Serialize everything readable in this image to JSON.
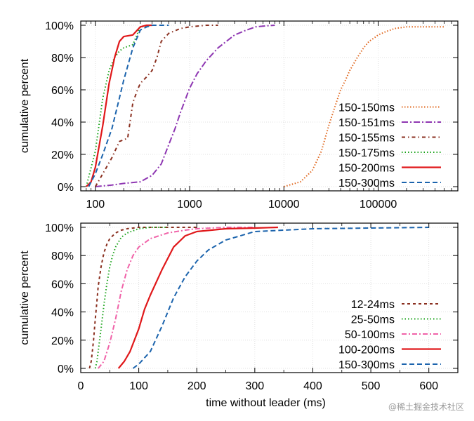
{
  "watermark": "@稀土掘金技术社区",
  "chart_data": [
    {
      "type": "line",
      "xscale": "log",
      "xlim": [
        70,
        700000
      ],
      "ylim": [
        0,
        100
      ],
      "xticks": [
        100,
        1000,
        10000,
        100000
      ],
      "xtick_labels": [
        "100",
        "1000",
        "10000",
        "100000"
      ],
      "yticks": [
        0,
        20,
        40,
        60,
        80,
        100
      ],
      "ytick_labels": [
        "0%",
        "20%",
        "40%",
        "60%",
        "80%",
        "100%"
      ],
      "xlabel": "",
      "ylabel": "cumulative percent",
      "grid": true,
      "legend": "right",
      "series": [
        {
          "name": "150-150ms",
          "color": "#e0671e",
          "dash": "1.5 2.5",
          "x": [
            10000,
            15000,
            20000,
            25000,
            30000,
            35000,
            40000,
            45000,
            50000,
            60000,
            70000,
            80000,
            90000,
            100000,
            120000,
            150000,
            200000,
            300000,
            500000
          ],
          "y": [
            0,
            3,
            10,
            22,
            38,
            50,
            60,
            66,
            72,
            80,
            86,
            90,
            92,
            94,
            96,
            98,
            99,
            99,
            99
          ]
        },
        {
          "name": "150-151ms",
          "color": "#8e36b2",
          "dash": "9 3 2 3",
          "x": [
            100,
            150,
            200,
            300,
            400,
            500,
            600,
            700,
            800,
            900,
            1000,
            1200,
            1500,
            2000,
            3000,
            4000,
            5000,
            6000,
            8000
          ],
          "y": [
            0,
            1,
            2,
            3,
            7,
            14,
            26,
            36,
            46,
            54,
            61,
            70,
            78,
            86,
            94,
            97,
            99,
            99.5,
            100
          ]
        },
        {
          "name": "150-155ms",
          "color": "#8a2f1f",
          "dash": "5 4 1.5 4",
          "x": [
            100,
            120,
            150,
            180,
            220,
            250,
            280,
            300,
            350,
            400,
            450,
            500,
            600,
            800,
            1000,
            1500,
            2000
          ],
          "y": [
            0,
            8,
            18,
            28,
            30,
            52,
            60,
            64,
            68,
            72,
            80,
            90,
            95,
            98,
            99,
            100,
            100
          ]
        },
        {
          "name": "150-175ms",
          "color": "#1aa31a",
          "dash": "1.5 3",
          "x": [
            80,
            100,
            120,
            140,
            160,
            180,
            200,
            250,
            300,
            400
          ],
          "y": [
            0,
            22,
            55,
            72,
            80,
            84,
            86,
            88,
            99,
            100
          ]
        },
        {
          "name": "150-200ms",
          "color": "#e0181a",
          "dash": "",
          "x": [
            80,
            90,
            100,
            120,
            140,
            160,
            180,
            200,
            250,
            300,
            350,
            400
          ],
          "y": [
            0,
            3,
            12,
            38,
            64,
            80,
            90,
            93,
            94,
            99,
            100,
            100
          ]
        },
        {
          "name": "150-300ms",
          "color": "#1c64ad",
          "dash": "7 4",
          "x": [
            85,
            100,
            120,
            150,
            180,
            200,
            250,
            300,
            350,
            400,
            600
          ],
          "y": [
            0,
            8,
            20,
            36,
            55,
            66,
            86,
            97,
            99,
            100,
            100
          ]
        }
      ]
    },
    {
      "type": "line",
      "xscale": "linear",
      "xlim": [
        0,
        650
      ],
      "ylim": [
        0,
        100
      ],
      "xticks": [
        0,
        100,
        200,
        300,
        400,
        500,
        600
      ],
      "xtick_labels": [
        "0",
        "100",
        "200",
        "300",
        "400",
        "500",
        "600"
      ],
      "yticks": [
        0,
        20,
        40,
        60,
        80,
        100
      ],
      "ytick_labels": [
        "0%",
        "20%",
        "40%",
        "60%",
        "80%",
        "100%"
      ],
      "xlabel": "time without leader (ms)",
      "ylabel": "cumulative percent",
      "grid": true,
      "legend": "right",
      "series": [
        {
          "name": "12-24ms",
          "color": "#8a2f1f",
          "dash": "4 4",
          "x": [
            15,
            18,
            20,
            22,
            25,
            28,
            30,
            35,
            40,
            45,
            50,
            60,
            70,
            80,
            100,
            130,
            150,
            200
          ],
          "y": [
            0,
            5,
            12,
            20,
            35,
            48,
            58,
            72,
            82,
            88,
            92,
            96,
            98,
            99,
            100,
            100,
            100,
            100
          ]
        },
        {
          "name": "25-50ms",
          "color": "#1aa31a",
          "dash": "1.5 3",
          "x": [
            25,
            28,
            30,
            35,
            40,
            45,
            50,
            55,
            60,
            70,
            80,
            100,
            120,
            150
          ],
          "y": [
            0,
            5,
            12,
            28,
            45,
            60,
            72,
            80,
            86,
            93,
            96,
            99,
            100,
            100
          ]
        },
        {
          "name": "50-100ms",
          "color": "#f062a8",
          "dash": "7 3 2 3",
          "x": [
            30,
            40,
            50,
            60,
            70,
            80,
            90,
            100,
            120,
            150,
            180,
            200,
            250,
            300
          ],
          "y": [
            0,
            5,
            18,
            35,
            55,
            70,
            80,
            86,
            92,
            96,
            98,
            99,
            100,
            100
          ]
        },
        {
          "name": "100-200ms",
          "color": "#e0181a",
          "dash": "",
          "x": [
            65,
            75,
            85,
            100,
            110,
            120,
            140,
            160,
            180,
            200,
            250,
            300,
            340
          ],
          "y": [
            0,
            5,
            12,
            28,
            42,
            52,
            70,
            86,
            94,
            97,
            99,
            99.5,
            100
          ]
        },
        {
          "name": "150-300ms",
          "color": "#1c64ad",
          "dash": "7 4",
          "x": [
            90,
            100,
            120,
            140,
            160,
            180,
            200,
            220,
            250,
            300,
            350,
            400,
            500,
            600
          ],
          "y": [
            0,
            3,
            12,
            30,
            50,
            65,
            76,
            84,
            91,
            97,
            98,
            99,
            99.5,
            100
          ]
        }
      ]
    }
  ]
}
